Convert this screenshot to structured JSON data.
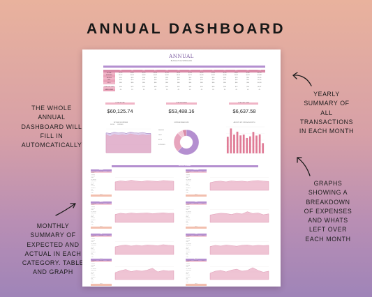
{
  "banner": {
    "title": "ANNUAL DASHBOARD"
  },
  "callouts": {
    "left_top": [
      "THE WHOLE",
      "ANNUAL",
      "DASHBOARD WILL",
      "FILL IN",
      "AUTOMCATICALLY"
    ],
    "left_bottom": [
      "MONTHLY",
      "SUMMARY OF",
      "EXPECTED AND",
      "ACTUAL IN EACH",
      "CATEGORY. TABLE",
      "AND GRAPH"
    ],
    "right_top": [
      "YEARLY",
      "SUMMARY OF",
      "ALL",
      "TRANSACTIONS",
      "IN EACH MONTH"
    ],
    "right_bottom": [
      "GRAPHS",
      "SHOWING A",
      "BREAKDOWN",
      "OF EXPENSES",
      "AND WHATS",
      "LEFT OVER",
      "EACH MONTH"
    ]
  },
  "colors": {
    "accent_purple": "#b48fd0",
    "accent_pink": "#d98aa7",
    "income_line": "#9a7bbf",
    "expense_area": "#e7a5bd",
    "bar_fill": "#e07b96"
  },
  "document": {
    "title": "ANNUAL",
    "subtitle": "BUDGET DASHBOARD",
    "summary_table": {
      "months": [
        "JAN",
        "FEB",
        "MAR",
        "APR",
        "MAY",
        "JUN",
        "JUL",
        "AUG",
        "SEP",
        "OCT",
        "NOV",
        "DEC",
        "TOTAL"
      ],
      "rows": [
        {
          "label": "INCOME",
          "values": [
            "$5,015",
            "$4,861",
            "$5,207",
            "$4,993",
            "$5,104",
            "$4,878",
            "$5,240",
            "$5,012",
            "$4,950",
            "$5,118",
            "$4,887",
            "$4,860",
            "$60,125"
          ]
        },
        {
          "label": "EXPENSES",
          "values": [
            "$4,512",
            "$4,109",
            "$4,640",
            "$4,337",
            "$4,561",
            "$4,311",
            "$4,775",
            "$4,498",
            "$4,302",
            "$4,580",
            "$4,312",
            "$4,551",
            "$53,488"
          ]
        },
        {
          "label": "SAVINGS",
          "values": [
            "$200",
            "$220",
            "$180",
            "$210",
            "$230",
            "$200",
            "$190",
            "$220",
            "$210",
            "$200",
            "$210",
            "$190",
            "$2,460"
          ]
        },
        {
          "label": "DEBT",
          "values": [
            "$120",
            "$120",
            "$120",
            "$120",
            "$120",
            "$120",
            "$120",
            "$120",
            "$120",
            "$120",
            "$120",
            "$120",
            "$1,440"
          ]
        },
        {
          "label": "BILLS",
          "values": [
            "$860",
            "$860",
            "$860",
            "$860",
            "$860",
            "$860",
            "$860",
            "$860",
            "$860",
            "$860",
            "$860",
            "$860",
            "$10,320"
          ]
        }
      ],
      "extra_rows": [
        {
          "label": "TOTAL LEFT OVER",
          "values": [
            "$503",
            "$752",
            "$567",
            "$656",
            "$543",
            "$567",
            "$465",
            "$514",
            "$648",
            "$538",
            "$575",
            "$309",
            "$6,637"
          ]
        },
        {
          "label": "SAVINGS RATE",
          "values": [
            "4%",
            "5%",
            "3%",
            "4%",
            "5%",
            "4%",
            "4%",
            "4%",
            "4%",
            "4%",
            "4%",
            "4%",
            "4%"
          ]
        }
      ]
    },
    "stats": [
      {
        "label": "TOTAL INCOME",
        "value": "$60,125.74"
      },
      {
        "label": "TOTAL EXPENSES",
        "value": "$53,488.16"
      },
      {
        "label": "TOTAL LEFT OVER",
        "value": "$6,637.58"
      }
    ],
    "mini_charts": {
      "income_title": "INCOME VS EXPENSES",
      "income_legend": [
        "INCOME",
        "EXPENSES"
      ],
      "donut_title": "EXPENSE BREAKDOWN",
      "donut_labels": [
        "SAVINGS",
        "DEBT",
        "BILLS",
        "EXPENSES"
      ],
      "bars_title": "AMOUNT LEFT OVER EACH MONTH",
      "monthly_title": "MONTHLY SUMMARY"
    },
    "monthly_tables": [
      {
        "month": "JANUARY"
      },
      {
        "month": "FEBRUARY"
      },
      {
        "month": "MARCH"
      },
      {
        "month": "APRIL"
      },
      {
        "month": "MAY"
      },
      {
        "month": "JUNE"
      },
      {
        "month": "JULY"
      },
      {
        "month": "AUGUST"
      }
    ],
    "monthly_table_columns": [
      "CATEGORY",
      "EXPECTED",
      "ACTUAL"
    ],
    "monthly_table_rows": [
      "INCOME",
      "HOUSING",
      "UTILITIES",
      "FOOD",
      "TRANSPORT",
      "INSURANCE",
      "HEALTH",
      "DEBT",
      "SAVINGS",
      "PERSONAL",
      "FUN",
      "GIFTS",
      "MISC"
    ],
    "monthly_total_label": "TOTAL"
  },
  "chart_data": [
    {
      "type": "area",
      "title": "INCOME VS EXPENSES",
      "x": [
        "JAN",
        "FEB",
        "MAR",
        "APR",
        "MAY",
        "JUN",
        "JUL",
        "AUG",
        "SEP",
        "OCT",
        "NOV",
        "DEC"
      ],
      "series": [
        {
          "name": "INCOME",
          "values": [
            5015,
            4861,
            5207,
            4993,
            5104,
            4878,
            5240,
            5012,
            4950,
            5118,
            4887,
            4860
          ]
        },
        {
          "name": "EXPENSES",
          "values": [
            4512,
            4109,
            4640,
            4337,
            4561,
            4311,
            4775,
            4498,
            4302,
            4580,
            4312,
            4551
          ]
        }
      ],
      "ylim": [
        0,
        6000
      ]
    },
    {
      "type": "pie",
      "title": "EXPENSE BREAKDOWN",
      "categories": [
        "EXPENSES",
        "BILLS",
        "SAVINGS",
        "DEBT"
      ],
      "values": [
        62,
        26,
        7,
        5
      ]
    },
    {
      "type": "bar",
      "title": "AMOUNT LEFT OVER EACH MONTH",
      "categories": [
        "JAN",
        "FEB",
        "MAR",
        "APR",
        "MAY",
        "JUN",
        "JUL",
        "AUG",
        "SEP",
        "OCT",
        "NOV",
        "DEC"
      ],
      "values": [
        503,
        752,
        567,
        656,
        543,
        567,
        465,
        514,
        648,
        538,
        575,
        309
      ],
      "ylim": [
        0,
        800
      ]
    }
  ]
}
